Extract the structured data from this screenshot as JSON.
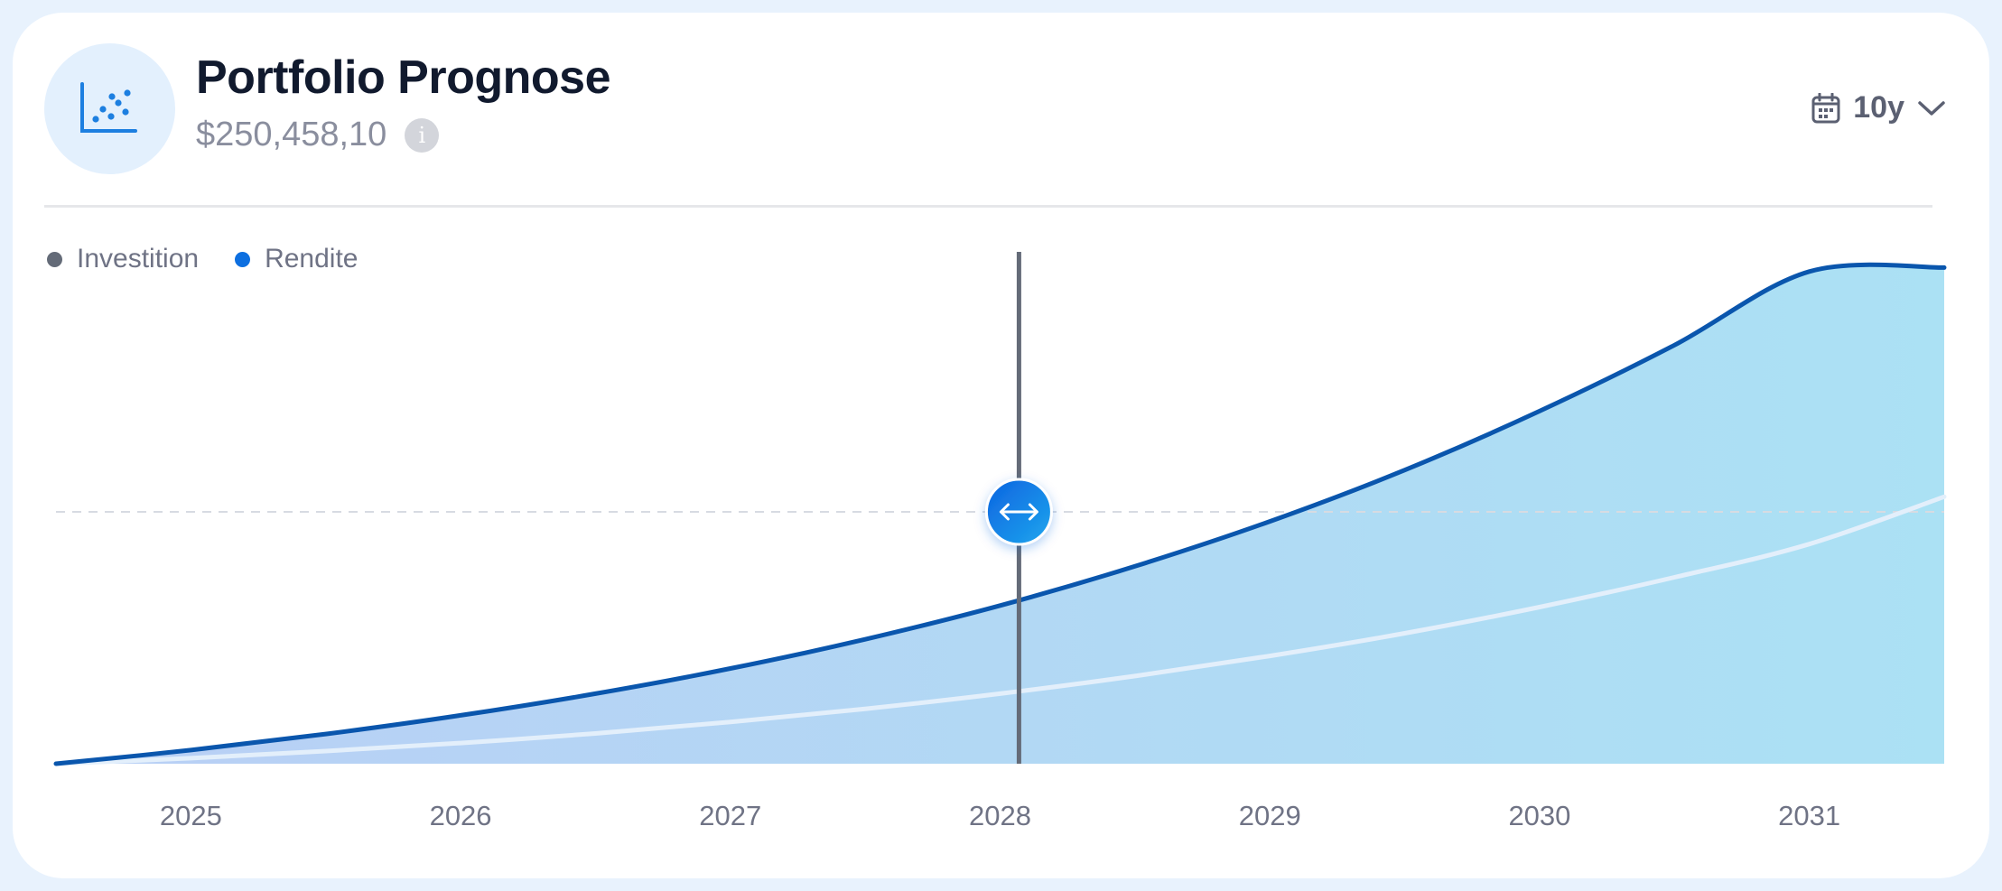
{
  "header": {
    "title": "Portfolio Prognose",
    "value": "$250,458,10",
    "icon": "scatter-chart-icon",
    "info_icon": "info-icon"
  },
  "range_select": {
    "label": "10y",
    "icon": "calendar-icon",
    "chevron": "chevron-down-icon"
  },
  "colors": {
    "investition": "#646b78",
    "rendite": "#0d6fe0",
    "line": "#0a56ad",
    "area_start": "#b9cff5",
    "area_end": "#abe1f4",
    "handle_start": "#0d63e0",
    "handle_end": "#1ea7ee"
  },
  "chart_data": {
    "type": "area",
    "x": [
      2024.5,
      2025,
      2025.5,
      2026,
      2026.5,
      2027,
      2027.5,
      2028,
      2028.5,
      2029,
      2029.5,
      2030,
      2030.5,
      2031,
      2031.5
    ],
    "xlim": [
      2024.5,
      2031.5
    ],
    "ylim": [
      0,
      1
    ],
    "x_ticks": [
      "2025",
      "2026",
      "2027",
      "2028",
      "2029",
      "2030",
      "2031"
    ],
    "x_tick_values": [
      2025,
      2026,
      2027,
      2028,
      2029,
      2030,
      2031
    ],
    "series": [
      {
        "name": "Investition",
        "values": [
          0,
          0.011,
          0.025,
          0.041,
          0.06,
          0.083,
          0.109,
          0.139,
          0.174,
          0.214,
          0.259,
          0.311,
          0.37,
          0.436,
          0.53
        ]
      },
      {
        "name": "Rendite",
        "values": [
          0,
          0.027,
          0.059,
          0.096,
          0.139,
          0.189,
          0.247,
          0.314,
          0.392,
          0.481,
          0.583,
          0.7,
          0.831,
          0.977,
          0.985
        ]
      }
    ],
    "marker_x": 2028.07,
    "reference_y": 0.5,
    "grid": false,
    "legend_position": "top-left"
  }
}
